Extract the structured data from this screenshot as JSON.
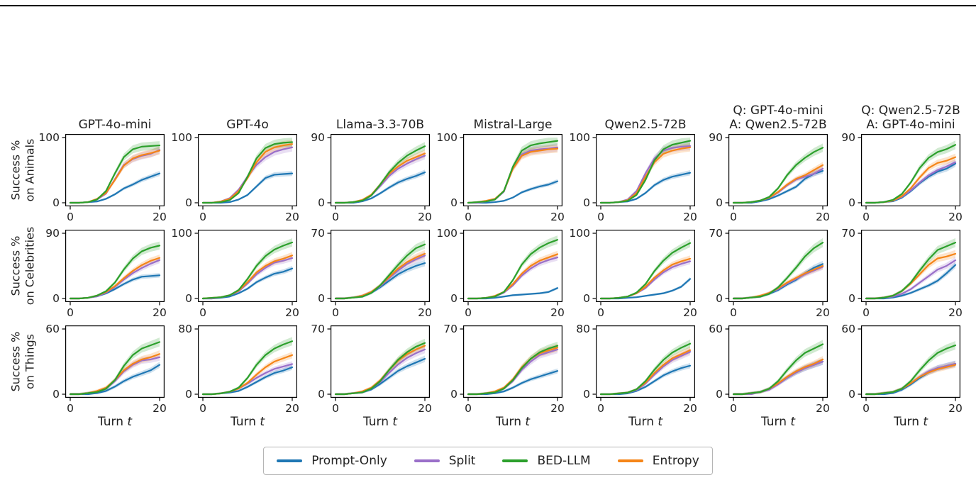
{
  "page": {
    "top_rule": true
  },
  "figure": {
    "row_labels": [
      [
        "Success %",
        "on Animals"
      ],
      [
        "Success %",
        "on Celebrities"
      ],
      [
        "Success %",
        "on Things"
      ]
    ],
    "col_titles": [
      [
        "GPT-4o-mini"
      ],
      [
        "GPT-4o"
      ],
      [
        "Llama-3.3-70B"
      ],
      [
        "Mistral-Large"
      ],
      [
        "Qwen2.5-72B"
      ],
      [
        "Q: GPT-4o-mini",
        "A: Qwen2.5-72B"
      ],
      [
        "Q: Qwen2.5-72B",
        "A: GPT-4o-mini"
      ]
    ],
    "xlabel_text": "Turn",
    "xlabel_var": "t",
    "x_tick_labels": [
      "0",
      "20"
    ],
    "legend": [
      {
        "key": "prompt_only",
        "label": "Prompt-Only",
        "color": "#1f77b4"
      },
      {
        "key": "split",
        "label": "Split",
        "color": "#9a6fc9"
      },
      {
        "key": "bed_llm",
        "label": "BED-LLM",
        "color": "#2ca02c"
      },
      {
        "key": "entropy",
        "label": "Entropy",
        "color": "#f58518"
      }
    ]
  },
  "chart_data": {
    "type": "line",
    "x": [
      0,
      2,
      4,
      6,
      8,
      10,
      12,
      14,
      16,
      18,
      20
    ],
    "xlim": [
      0,
      20
    ],
    "draw_order": [
      "prompt_only",
      "split",
      "entropy",
      "bed_llm"
    ],
    "grid": [
      [
        {
          "ymax": 100,
          "prompt_only": [
            0,
            0,
            1,
            2,
            6,
            13,
            22,
            28,
            35,
            40,
            45
          ],
          "split": [
            0,
            0,
            1,
            5,
            14,
            36,
            58,
            67,
            72,
            75,
            81
          ],
          "bed_llm": [
            0,
            0,
            1,
            5,
            18,
            45,
            70,
            82,
            86,
            87,
            88
          ],
          "entropy": [
            0,
            0,
            1,
            6,
            15,
            35,
            57,
            68,
            73,
            76,
            80
          ]
        },
        {
          "ymax": 100,
          "prompt_only": [
            0,
            0,
            0,
            1,
            5,
            12,
            25,
            38,
            43,
            44,
            45
          ],
          "split": [
            0,
            0,
            2,
            7,
            20,
            40,
            58,
            70,
            78,
            82,
            85
          ],
          "bed_llm": [
            0,
            0,
            1,
            4,
            15,
            40,
            68,
            84,
            90,
            92,
            93
          ],
          "entropy": [
            0,
            0,
            2,
            6,
            18,
            38,
            62,
            78,
            85,
            88,
            90
          ]
        },
        {
          "ymax": 90,
          "prompt_only": [
            0,
            0,
            0,
            2,
            6,
            13,
            21,
            28,
            33,
            37,
            42
          ],
          "split": [
            0,
            0,
            1,
            3,
            10,
            23,
            37,
            47,
            54,
            60,
            65
          ],
          "bed_llm": [
            0,
            0,
            1,
            3,
            10,
            25,
            42,
            55,
            65,
            72,
            78
          ],
          "entropy": [
            0,
            0,
            1,
            4,
            11,
            25,
            40,
            50,
            58,
            63,
            68
          ]
        },
        {
          "ymax": 100,
          "prompt_only": [
            0,
            0,
            0,
            1,
            3,
            8,
            16,
            21,
            25,
            28,
            33
          ],
          "split": [
            0,
            0,
            2,
            5,
            17,
            53,
            74,
            80,
            82,
            83,
            85
          ],
          "bed_llm": [
            0,
            1,
            2,
            5,
            18,
            55,
            80,
            88,
            91,
            93,
            95
          ],
          "entropy": [
            0,
            1,
            3,
            6,
            18,
            52,
            72,
            78,
            80,
            82,
            83
          ]
        },
        {
          "ymax": 100,
          "prompt_only": [
            0,
            0,
            1,
            2,
            6,
            15,
            27,
            35,
            40,
            43,
            46
          ],
          "split": [
            0,
            0,
            1,
            5,
            18,
            45,
            68,
            80,
            84,
            86,
            87
          ],
          "bed_llm": [
            0,
            0,
            1,
            3,
            12,
            35,
            65,
            82,
            89,
            92,
            95
          ],
          "entropy": [
            0,
            0,
            1,
            4,
            15,
            40,
            62,
            75,
            80,
            83,
            85
          ]
        },
        {
          "ymax": 90,
          "prompt_only": [
            0,
            0,
            0,
            2,
            5,
            10,
            16,
            22,
            33,
            40,
            44
          ],
          "split": [
            0,
            0,
            1,
            3,
            7,
            14,
            24,
            32,
            36,
            40,
            47
          ],
          "bed_llm": [
            0,
            0,
            1,
            3,
            8,
            20,
            38,
            52,
            62,
            70,
            76
          ],
          "entropy": [
            0,
            0,
            1,
            3,
            7,
            15,
            25,
            33,
            38,
            45,
            52
          ]
        },
        {
          "ymax": 90,
          "prompt_only": [
            0,
            0,
            1,
            2,
            7,
            16,
            27,
            36,
            43,
            47,
            54
          ],
          "split": [
            0,
            0,
            1,
            3,
            8,
            17,
            28,
            38,
            45,
            50,
            56
          ],
          "bed_llm": [
            0,
            0,
            1,
            4,
            12,
            28,
            48,
            62,
            70,
            74,
            80
          ],
          "entropy": [
            0,
            0,
            1,
            3,
            9,
            20,
            35,
            48,
            55,
            58,
            63
          ]
        }
      ],
      [
        {
          "ymax": 90,
          "prompt_only": [
            0,
            0,
            1,
            3,
            7,
            13,
            20,
            26,
            30,
            31,
            32
          ],
          "split": [
            0,
            0,
            1,
            3,
            8,
            16,
            26,
            35,
            42,
            48,
            53
          ],
          "bed_llm": [
            0,
            0,
            1,
            4,
            10,
            22,
            40,
            55,
            65,
            70,
            73
          ],
          "entropy": [
            0,
            0,
            1,
            4,
            9,
            17,
            28,
            38,
            46,
            52,
            56
          ]
        },
        {
          "ymax": 100,
          "prompt_only": [
            0,
            0,
            1,
            3,
            8,
            15,
            25,
            32,
            38,
            41,
            46
          ],
          "split": [
            0,
            0,
            2,
            5,
            11,
            23,
            37,
            47,
            55,
            58,
            62
          ],
          "bed_llm": [
            0,
            1,
            2,
            5,
            13,
            30,
            50,
            65,
            75,
            81,
            86
          ],
          "entropy": [
            0,
            1,
            2,
            5,
            12,
            25,
            40,
            50,
            57,
            61,
            66
          ]
        },
        {
          "ymax": 70,
          "prompt_only": [
            0,
            0,
            1,
            2,
            6,
            12,
            19,
            26,
            31,
            35,
            38
          ],
          "split": [
            0,
            0,
            1,
            3,
            7,
            13,
            22,
            30,
            37,
            42,
            46
          ],
          "bed_llm": [
            0,
            0,
            1,
            2,
            6,
            14,
            25,
            36,
            46,
            54,
            58
          ],
          "entropy": [
            0,
            0,
            1,
            3,
            7,
            14,
            23,
            32,
            39,
            44,
            48
          ]
        },
        {
          "ymax": 100,
          "prompt_only": [
            0,
            0,
            0,
            1,
            3,
            5,
            6,
            7,
            8,
            10,
            16
          ],
          "split": [
            0,
            0,
            1,
            3,
            9,
            20,
            35,
            46,
            54,
            59,
            63
          ],
          "bed_llm": [
            0,
            0,
            1,
            3,
            10,
            28,
            52,
            68,
            78,
            85,
            90
          ],
          "entropy": [
            0,
            0,
            1,
            4,
            10,
            22,
            38,
            50,
            58,
            63,
            68
          ]
        },
        {
          "ymax": 100,
          "prompt_only": [
            0,
            0,
            0,
            1,
            2,
            4,
            6,
            8,
            12,
            18,
            30
          ],
          "split": [
            0,
            0,
            1,
            3,
            8,
            16,
            29,
            40,
            48,
            53,
            57
          ],
          "bed_llm": [
            0,
            0,
            1,
            3,
            9,
            22,
            42,
            58,
            70,
            78,
            85
          ],
          "entropy": [
            0,
            0,
            1,
            3,
            8,
            18,
            32,
            43,
            52,
            57,
            61
          ]
        },
        {
          "ymax": 70,
          "prompt_only": [
            0,
            0,
            1,
            2,
            5,
            9,
            15,
            20,
            27,
            33,
            37
          ],
          "split": [
            0,
            0,
            1,
            2,
            6,
            10,
            16,
            21,
            26,
            30,
            34
          ],
          "bed_llm": [
            0,
            0,
            1,
            2,
            5,
            12,
            22,
            33,
            45,
            54,
            60
          ],
          "entropy": [
            0,
            0,
            1,
            3,
            6,
            11,
            17,
            22,
            27,
            31,
            35
          ]
        },
        {
          "ymax": 70,
          "prompt_only": [
            0,
            0,
            0,
            1,
            3,
            6,
            10,
            14,
            19,
            27,
            36
          ],
          "split": [
            0,
            0,
            1,
            2,
            5,
            10,
            17,
            24,
            31,
            35,
            41
          ],
          "bed_llm": [
            0,
            0,
            1,
            3,
            8,
            17,
            30,
            42,
            52,
            56,
            60
          ],
          "entropy": [
            0,
            0,
            1,
            3,
            8,
            16,
            26,
            36,
            43,
            45,
            48
          ]
        }
      ],
      [
        {
          "ymax": 60,
          "prompt_only": [
            0,
            0,
            0,
            1,
            3,
            7,
            12,
            16,
            19,
            22,
            27
          ],
          "split": [
            0,
            0,
            1,
            2,
            5,
            12,
            21,
            27,
            31,
            32,
            34
          ],
          "bed_llm": [
            0,
            0,
            1,
            2,
            5,
            13,
            26,
            36,
            42,
            45,
            48
          ],
          "entropy": [
            0,
            0,
            1,
            3,
            6,
            13,
            22,
            28,
            32,
            34,
            37
          ]
        },
        {
          "ymax": 80,
          "prompt_only": [
            0,
            0,
            1,
            2,
            4,
            9,
            15,
            21,
            26,
            29,
            33
          ],
          "split": [
            0,
            0,
            1,
            3,
            7,
            13,
            20,
            26,
            31,
            34,
            37
          ],
          "bed_llm": [
            0,
            0,
            1,
            3,
            8,
            20,
            36,
            48,
            56,
            61,
            65
          ],
          "entropy": [
            0,
            0,
            1,
            3,
            7,
            14,
            24,
            33,
            40,
            44,
            48
          ]
        },
        {
          "ymax": 70,
          "prompt_only": [
            0,
            0,
            1,
            2,
            5,
            11,
            18,
            25,
            30,
            34,
            38
          ],
          "split": [
            0,
            0,
            1,
            2,
            6,
            13,
            23,
            32,
            39,
            44,
            48
          ],
          "bed_llm": [
            0,
            0,
            1,
            2,
            6,
            14,
            26,
            37,
            45,
            51,
            55
          ],
          "entropy": [
            0,
            0,
            1,
            3,
            7,
            15,
            26,
            36,
            43,
            48,
            52
          ]
        },
        {
          "ymax": 70,
          "prompt_only": [
            0,
            0,
            0,
            1,
            3,
            7,
            12,
            16,
            19,
            22,
            25
          ],
          "split": [
            0,
            0,
            1,
            2,
            6,
            14,
            26,
            35,
            42,
            45,
            48
          ],
          "bed_llm": [
            0,
            0,
            1,
            2,
            6,
            15,
            28,
            38,
            45,
            49,
            52
          ],
          "entropy": [
            0,
            0,
            1,
            3,
            7,
            16,
            29,
            38,
            44,
            47,
            50
          ]
        },
        {
          "ymax": 80,
          "prompt_only": [
            0,
            0,
            0,
            1,
            4,
            9,
            16,
            23,
            28,
            32,
            35
          ],
          "split": [
            0,
            0,
            1,
            2,
            5,
            13,
            24,
            34,
            42,
            47,
            52
          ],
          "bed_llm": [
            0,
            0,
            1,
            2,
            6,
            16,
            30,
            42,
            51,
            57,
            62
          ],
          "entropy": [
            0,
            0,
            1,
            2,
            6,
            14,
            26,
            36,
            44,
            49,
            54
          ]
        },
        {
          "ymax": 60,
          "prompt_only": [
            0,
            0,
            1,
            2,
            5,
            10,
            15,
            20,
            24,
            27,
            30
          ],
          "split": [
            0,
            0,
            0,
            2,
            4,
            9,
            15,
            20,
            24,
            27,
            30
          ],
          "bed_llm": [
            0,
            0,
            1,
            2,
            5,
            12,
            22,
            31,
            38,
            42,
            46
          ],
          "entropy": [
            0,
            0,
            1,
            2,
            5,
            10,
            16,
            21,
            25,
            28,
            32
          ]
        },
        {
          "ymax": 60,
          "prompt_only": [
            0,
            0,
            0,
            1,
            4,
            9,
            15,
            20,
            24,
            26,
            28
          ],
          "split": [
            0,
            0,
            1,
            2,
            5,
            10,
            16,
            21,
            24,
            26,
            28
          ],
          "bed_llm": [
            0,
            0,
            1,
            2,
            5,
            12,
            22,
            31,
            38,
            42,
            45
          ],
          "entropy": [
            0,
            0,
            1,
            2,
            5,
            10,
            16,
            20,
            23,
            25,
            27
          ]
        }
      ]
    ]
  }
}
